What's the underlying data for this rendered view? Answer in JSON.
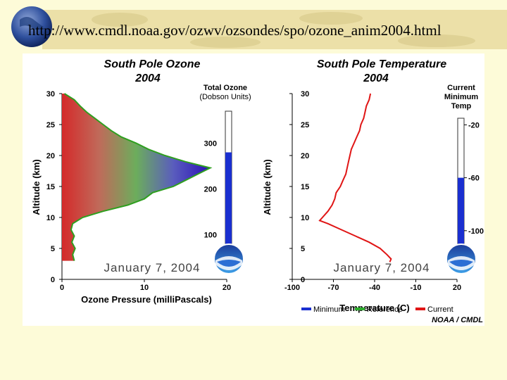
{
  "page": {
    "url": "http://www.cmdl.noaa.gov/ozwv/ozsondes/spo/ozone_anim2004.html"
  },
  "colors": {
    "banner": "#ece0a8",
    "ozone_outline": "#2f9f1f",
    "minimum": "#1a2fd0",
    "reference": "#2cae2c",
    "current": "#e01515"
  },
  "chart_data": [
    {
      "type": "area",
      "title": "South Pole Ozone",
      "subtitle": "2004",
      "xlabel": "Ozone Pressure (milliPascals)",
      "ylabel": "Altitude (km)",
      "xlim": [
        0,
        20
      ],
      "ylim": [
        0,
        30
      ],
      "xticks": [
        "0",
        "10",
        "20"
      ],
      "yticks": [
        "0",
        "5",
        "10",
        "15",
        "20",
        "25",
        "30"
      ],
      "date": "January 7, 2004",
      "profile": {
        "altitude": [
          3,
          4,
          5,
          6,
          7,
          8,
          9,
          10,
          11,
          12,
          13,
          14,
          15,
          16,
          17,
          18,
          19,
          20,
          21,
          22,
          23,
          24,
          25,
          26,
          27,
          28,
          29,
          30
        ],
        "pressure": [
          1.5,
          1.3,
          1.6,
          1.2,
          1.5,
          1.1,
          1.3,
          2.5,
          5,
          8,
          10,
          11,
          13.5,
          15,
          16.5,
          18,
          15,
          12.5,
          10.5,
          9,
          7.2,
          6,
          5,
          4,
          3,
          2.2,
          1.5,
          0.3
        ]
      },
      "gauge": {
        "label": "Total Ozone",
        "units": "(Dobson Units)",
        "scale": [
          "300",
          "200",
          "100"
        ],
        "range": [
          50,
          370
        ],
        "value": 280
      }
    },
    {
      "type": "line",
      "title": "South Pole Temperature",
      "subtitle": "2004",
      "xlabel": "Temperature (C)",
      "ylabel": "Altitude (km)",
      "xlim": [
        -100,
        20
      ],
      "ylim": [
        0,
        30
      ],
      "xticks": [
        "-100",
        "-70",
        "-40",
        "-10",
        "20"
      ],
      "yticks": [
        "0",
        "5",
        "10",
        "15",
        "20",
        "25",
        "30"
      ],
      "date": "January 7, 2004",
      "series": [
        {
          "name": "Current",
          "altitude": [
            2.8,
            3.3,
            4,
            5,
            6,
            7,
            8,
            9,
            9.5,
            10,
            11,
            12,
            13,
            14,
            15,
            16,
            17,
            18,
            19,
            20,
            21,
            22,
            23,
            24,
            25,
            26,
            27,
            28,
            29,
            30
          ],
          "temperature": [
            -29,
            -28,
            -31,
            -36,
            -44,
            -54,
            -64,
            -74,
            -80,
            -78,
            -74,
            -71,
            -69,
            -68,
            -65,
            -63,
            -61,
            -60,
            -59,
            -58,
            -57,
            -55,
            -53,
            -51,
            -50,
            -48,
            -47,
            -46,
            -44,
            -43
          ]
        }
      ],
      "legend": [
        "Minimum",
        "Reference",
        "Current"
      ],
      "gauge": {
        "label_lines": [
          "Current",
          "Minimum",
          "Temp"
        ],
        "scale": [
          "-20",
          "-60",
          "-100"
        ],
        "range": [
          -115,
          -15
        ],
        "value": -60
      },
      "credit": "NOAA / CMDL"
    }
  ]
}
